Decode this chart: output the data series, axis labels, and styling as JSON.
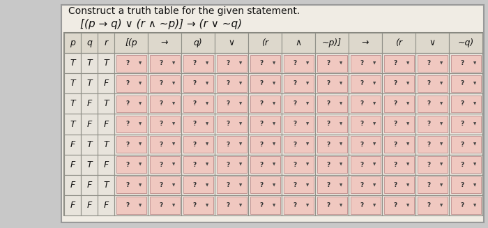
{
  "title": "Construct a truth table for the given statement.",
  "formula": "[(p → q) ∨ (r ∧ ~p)] → (r ∨ ~q)",
  "header_labels": [
    "p",
    "q",
    "r",
    "[(p",
    "→",
    "q)",
    "∨",
    "(r",
    "∧",
    "~p)]",
    "→",
    "(r",
    "∨",
    "~q)"
  ],
  "pqr_rows": [
    [
      "T",
      "T",
      "T"
    ],
    [
      "T",
      "T",
      "F"
    ],
    [
      "T",
      "F",
      "T"
    ],
    [
      "T",
      "F",
      "F"
    ],
    [
      "F",
      "T",
      "T"
    ],
    [
      "F",
      "T",
      "F"
    ],
    [
      "F",
      "F",
      "T"
    ],
    [
      "F",
      "F",
      "F"
    ]
  ],
  "num_answer_cols": 11,
  "page_bg_color": "#c8c8c8",
  "panel_bg_color": "#e8e4dc",
  "table_outer_color": "#b0a898",
  "header_bg_color": "#ddd8cc",
  "row_bg_color": "#e8e4dc",
  "cell_outer_color": "#b8b0a0",
  "dropdown_bg_color": "#f0c8c0",
  "dropdown_border_color": "#c09090",
  "dropdown_shadow_color": "#a87060",
  "pqr_bg_color": "#e8e4dc",
  "text_color": "#111111",
  "title_fontsize": 10,
  "formula_fontsize": 11,
  "header_fontsize": 9,
  "data_fontsize": 9,
  "fig_width": 7.0,
  "fig_height": 3.27,
  "dpi": 100
}
